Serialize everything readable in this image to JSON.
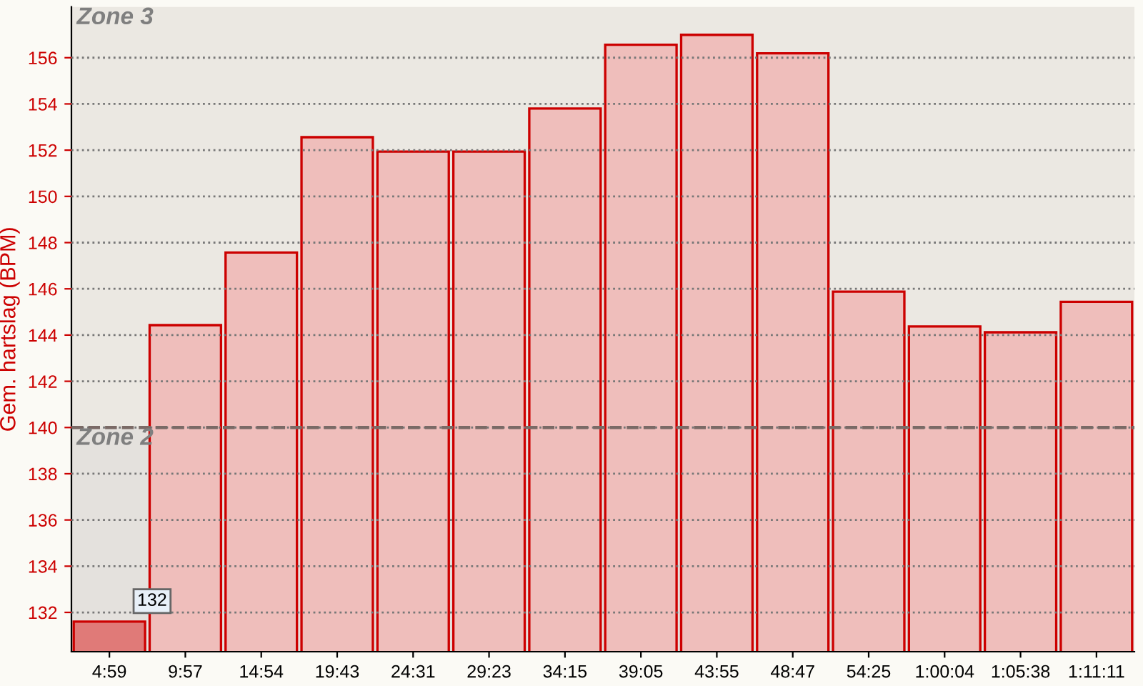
{
  "chart_data": {
    "type": "bar",
    "ylabel": "Gem. hartslag (BPM)",
    "categories": [
      "4:59",
      "9:57",
      "14:54",
      "19:43",
      "24:31",
      "29:23",
      "34:15",
      "39:05",
      "43:55",
      "48:47",
      "54:25",
      "1:00:04",
      "1:05:38",
      "1:11:11"
    ],
    "values": [
      131.6,
      144.43,
      147.57,
      152.56,
      151.94,
      151.94,
      153.8,
      156.56,
      156.99,
      156.19,
      145.88,
      144.37,
      144.12,
      145.44
    ],
    "value_labels": [
      "132",
      null,
      null,
      null,
      null,
      null,
      null,
      null,
      null,
      null,
      null,
      null,
      null,
      null
    ],
    "colors": [
      "#e07a78",
      "#efbebb",
      "#efbebb",
      "#efbebb",
      "#efbebb",
      "#efbebb",
      "#efbebb",
      "#efbebb",
      "#efbebb",
      "#efbebb",
      "#efbebb",
      "#efbebb",
      "#efbebb",
      "#efbebb"
    ],
    "ylim": [
      130.3,
      158.2
    ],
    "yticks": [
      132,
      134,
      136,
      138,
      140,
      142,
      144,
      146,
      148,
      150,
      152,
      154,
      156
    ],
    "grid": "y",
    "bands": [
      {
        "axis": "y",
        "from": 140,
        "to": 158.2,
        "label": "Zone 3",
        "color": "#ebe8e2"
      },
      {
        "axis": "y",
        "from": 130.3,
        "to": 140,
        "label": "Zone 2",
        "color": "#e4e1dd"
      }
    ],
    "ref_lines": [
      {
        "axis": "y",
        "value": 140,
        "label": null,
        "color": "#7a6a66",
        "line_style": "dashed"
      }
    ]
  }
}
